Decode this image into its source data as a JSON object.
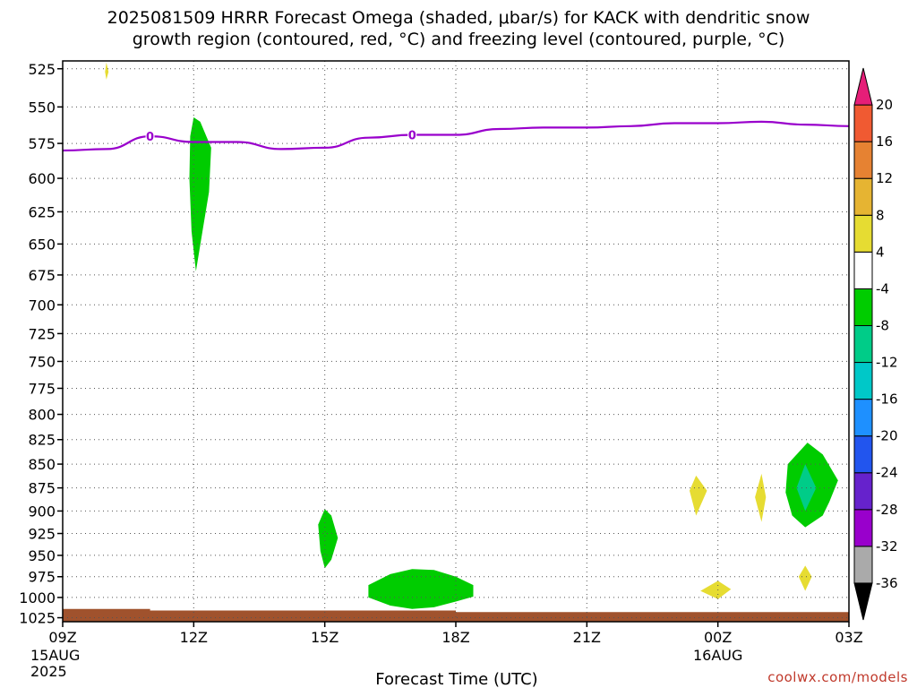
{
  "title_line1": "2025081509 HRRR Forecast Omega (shaded, μbar/s) for KACK with dendritic snow",
  "title_line2": "growth region (contoured, red, °C) and freezing level (contoured, purple, °C)",
  "xlabel": "Forecast Time (UTC)",
  "credit": "coolwx.com/models",
  "chart_data": {
    "type": "area",
    "x_ticks": [
      {
        "hour": 0,
        "label": "09Z",
        "sub1": "15AUG",
        "sub2": "2025"
      },
      {
        "hour": 3,
        "label": "12Z",
        "sub1": "",
        "sub2": ""
      },
      {
        "hour": 6,
        "label": "15Z",
        "sub1": "",
        "sub2": ""
      },
      {
        "hour": 9,
        "label": "18Z",
        "sub1": "",
        "sub2": ""
      },
      {
        "hour": 12,
        "label": "21Z",
        "sub1": "",
        "sub2": ""
      },
      {
        "hour": 15,
        "label": "00Z",
        "sub1": "16AUG",
        "sub2": ""
      },
      {
        "hour": 18,
        "label": "03Z",
        "sub1": "",
        "sub2": ""
      }
    ],
    "xlim": [
      0,
      18
    ],
    "y_ticks": [
      525,
      550,
      575,
      600,
      625,
      650,
      675,
      700,
      725,
      750,
      775,
      800,
      825,
      850,
      875,
      900,
      925,
      950,
      975,
      1000,
      1025
    ],
    "ylim": [
      520,
      1030
    ],
    "yscale": "log-pressure",
    "grid": true,
    "freezing_level": {
      "color": "#9900cc",
      "label": "0",
      "label_hours": [
        2,
        8
      ],
      "points": [
        [
          0,
          580
        ],
        [
          1,
          579
        ],
        [
          2,
          570
        ],
        [
          3,
          574
        ],
        [
          4,
          574
        ],
        [
          5,
          579
        ],
        [
          6,
          578
        ],
        [
          7,
          571
        ],
        [
          8,
          569
        ],
        [
          9,
          569
        ],
        [
          10,
          565
        ],
        [
          11,
          564
        ],
        [
          12,
          564
        ],
        [
          13,
          563
        ],
        [
          14,
          561
        ],
        [
          15,
          561
        ],
        [
          16,
          560
        ],
        [
          17,
          562
        ],
        [
          18,
          563
        ]
      ]
    },
    "omega_regions": [
      {
        "value": -6,
        "color": "#00cc00",
        "polygon": [
          [
            3.0,
            557
          ],
          [
            3.15,
            560
          ],
          [
            3.4,
            578
          ],
          [
            3.35,
            610
          ],
          [
            3.2,
            640
          ],
          [
            3.05,
            672
          ],
          [
            2.95,
            640
          ],
          [
            2.9,
            600
          ],
          [
            2.92,
            570
          ]
        ]
      },
      {
        "value": -6,
        "color": "#00cc00",
        "polygon": [
          [
            6.0,
            898
          ],
          [
            6.15,
            905
          ],
          [
            6.3,
            930
          ],
          [
            6.15,
            955
          ],
          [
            6.0,
            965
          ],
          [
            5.9,
            945
          ],
          [
            5.85,
            915
          ]
        ]
      },
      {
        "value": -6,
        "color": "#00cc00",
        "polygon": [
          [
            7.0,
            985
          ],
          [
            7.5,
            972
          ],
          [
            8.0,
            966
          ],
          [
            8.5,
            967
          ],
          [
            9.0,
            975
          ],
          [
            9.4,
            985
          ],
          [
            9.4,
            999
          ],
          [
            9.0,
            1005
          ],
          [
            8.5,
            1012
          ],
          [
            8.0,
            1014
          ],
          [
            7.5,
            1010
          ],
          [
            7.0,
            1000
          ]
        ]
      },
      {
        "value": -6,
        "color": "#00cc00",
        "polygon": [
          [
            17.05,
            828
          ],
          [
            17.4,
            840
          ],
          [
            17.75,
            867
          ],
          [
            17.55,
            890
          ],
          [
            17.4,
            905
          ],
          [
            17.0,
            918
          ],
          [
            16.7,
            905
          ],
          [
            16.55,
            880
          ],
          [
            16.6,
            850
          ]
        ]
      },
      {
        "value": -10,
        "color": "#00cc88",
        "polygon": [
          [
            17.0,
            850
          ],
          [
            17.25,
            875
          ],
          [
            17.0,
            900
          ],
          [
            16.8,
            875
          ]
        ]
      },
      {
        "value": 6,
        "color": "#e6dc32",
        "polygon": [
          [
            14.5,
            862
          ],
          [
            14.75,
            878
          ],
          [
            14.5,
            905
          ],
          [
            14.35,
            878
          ]
        ]
      },
      {
        "value": 6,
        "color": "#e6dc32",
        "polygon": [
          [
            16.0,
            860
          ],
          [
            16.1,
            885
          ],
          [
            16.0,
            912
          ],
          [
            15.85,
            885
          ]
        ]
      },
      {
        "value": 6,
        "color": "#e6dc32",
        "polygon": [
          [
            15.0,
            980
          ],
          [
            15.3,
            990
          ],
          [
            15.0,
            1002
          ],
          [
            14.6,
            992
          ]
        ]
      },
      {
        "value": 6,
        "color": "#e6dc32",
        "polygon": [
          [
            17.0,
            962
          ],
          [
            17.15,
            975
          ],
          [
            17.0,
            992
          ],
          [
            16.85,
            975
          ]
        ]
      },
      {
        "value": 6,
        "color": "#e6dc32",
        "polygon": [
          [
            1.0,
            521
          ],
          [
            1.05,
            527
          ],
          [
            1.0,
            532
          ],
          [
            0.97,
            527
          ]
        ]
      }
    ],
    "surface": {
      "color": "#a0522d",
      "points": [
        [
          0,
          1014
        ],
        [
          2,
          1014
        ],
        [
          3,
          1016
        ],
        [
          9,
          1016
        ],
        [
          9.5,
          1018
        ],
        [
          18,
          1018
        ]
      ]
    },
    "colorbar": {
      "colors": [
        "#000000",
        "#aaaaaa",
        "#9900cc",
        "#6622cc",
        "#2255ee",
        "#1e90ff",
        "#00c8c8",
        "#00cc88",
        "#00cc00",
        "#ffffff",
        "#e6dc32",
        "#e6b432",
        "#e68232",
        "#f05a32",
        "#e61e78"
      ],
      "labels": [
        "-36",
        "-32",
        "-28",
        "-24",
        "-20",
        "-16",
        "-12",
        "-8",
        "-4",
        "4",
        "8",
        "12",
        "16",
        "20"
      ]
    }
  }
}
